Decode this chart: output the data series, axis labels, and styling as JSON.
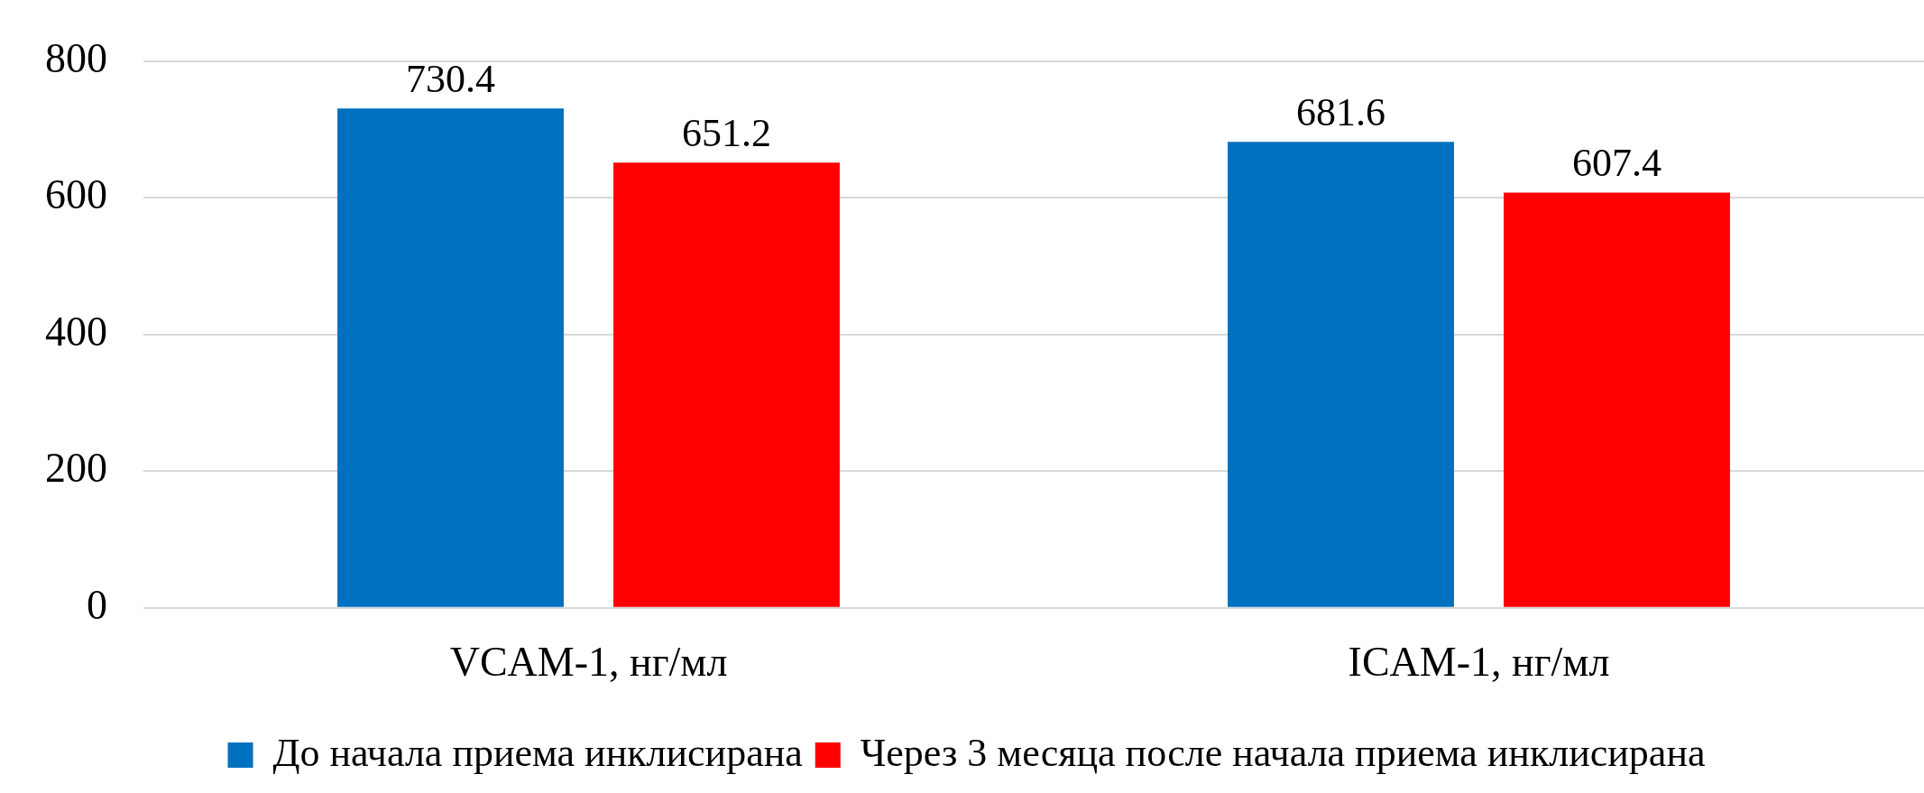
{
  "chart_data": {
    "type": "bar",
    "categories": [
      "VCAM-1, нг/мл",
      "ICAM-1, нг/мл"
    ],
    "series": [
      {
        "name": "До начала приема инклисирана",
        "color": "#0070c0",
        "values": [
          730.4,
          681.6
        ]
      },
      {
        "name": "Через 3 месяца после начала приема инклисирана",
        "color": "#ff0000",
        "values": [
          651.2,
          607.4
        ]
      }
    ],
    "ylim": [
      0,
      800
    ],
    "yticks": [
      0,
      200,
      400,
      600,
      800
    ],
    "grid": "y",
    "legend": "bottom",
    "data_labels": true
  }
}
